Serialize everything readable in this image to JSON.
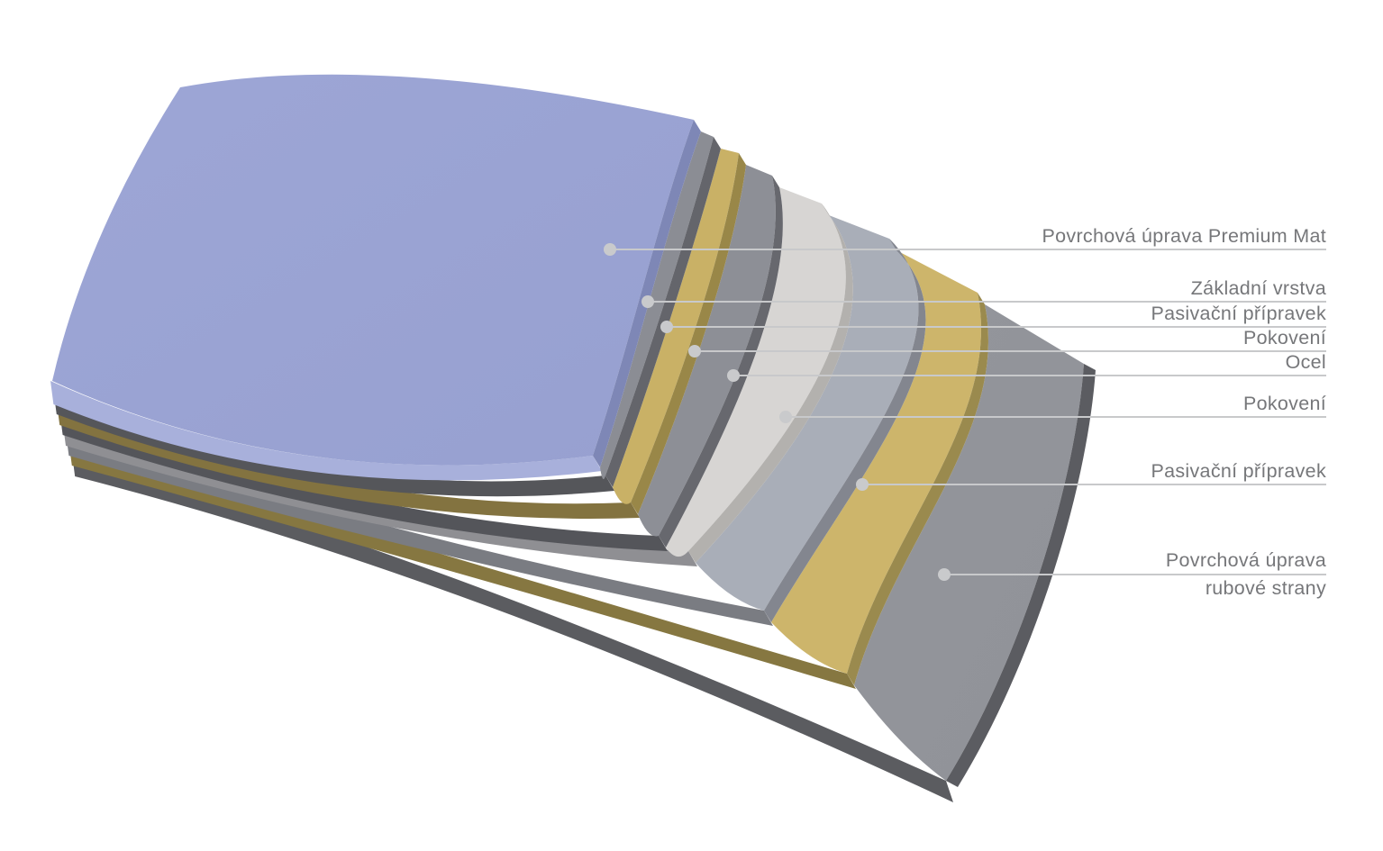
{
  "page": {
    "background": "#ffffff"
  },
  "diagram": {
    "type": "layer-stack-cross-section",
    "layers": [
      {
        "id": "povrchova-uprava-premium-mat",
        "label": "Povrchová úprava Premium Mat",
        "colors": {
          "top": "#97a0d0",
          "top_light": "#9da6d6",
          "side": "#7e87b6",
          "front": "#a8b0db"
        }
      },
      {
        "id": "zakladni-vrstva",
        "label": "Základní vrstva",
        "colors": {
          "top": "#8b8d94",
          "side": "#64656b",
          "front": "#55565a"
        }
      },
      {
        "id": "pasivacni-pripravek-lic",
        "label": "Pasivační přípravek",
        "colors": {
          "top": "#c9b166",
          "side": "#998748",
          "front": "#837340"
        }
      },
      {
        "id": "pokoveni-lic",
        "label": "Pokovení",
        "colors": {
          "top": "#8d8f96",
          "side": "#67686e",
          "front": "#54555a"
        }
      },
      {
        "id": "ocel",
        "label": "Ocel",
        "colors": {
          "top": "#d7d5d3",
          "side": "#b3b1ae",
          "front": "#8f8f93"
        }
      },
      {
        "id": "pokoveni-rub",
        "label": "Pokovení",
        "colors": {
          "top": "#a9aeb8",
          "side": "#83868f",
          "front": "#7a7c82"
        }
      },
      {
        "id": "pasivacni-pripravek-rub",
        "label": "Pasivační přípravek",
        "colors": {
          "top": "#cdb56b",
          "side": "#9a8a4e",
          "front": "#867741"
        }
      },
      {
        "id": "povrchova-uprava-rubove-strany",
        "label": "Povrchová úprava rubové strany",
        "label_lines": [
          "Povrchová úprava",
          "rubové strany"
        ],
        "colors": {
          "top": "#909298",
          "top_light": "#94969c",
          "side": "#5b5c61",
          "front": "#5b5c60"
        }
      }
    ],
    "callout_style": {
      "line_color": "#c8c9cb",
      "dot_color": "#c9cacc",
      "text_color": "#76777a"
    }
  }
}
